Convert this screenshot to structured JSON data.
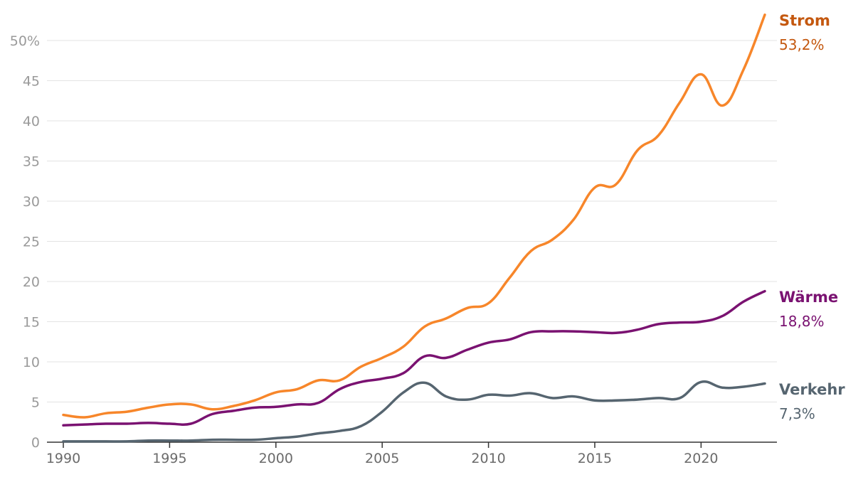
{
  "chart_data": {
    "type": "line",
    "title": "",
    "xlabel": "",
    "ylabel": "",
    "ylim": [
      0,
      55
    ],
    "y_ticks": [
      {
        "value": 0,
        "label": "0"
      },
      {
        "value": 5,
        "label": "5"
      },
      {
        "value": 10,
        "label": "10"
      },
      {
        "value": 15,
        "label": "15"
      },
      {
        "value": 20,
        "label": "20"
      },
      {
        "value": 25,
        "label": "25"
      },
      {
        "value": 30,
        "label": "30"
      },
      {
        "value": 35,
        "label": "35"
      },
      {
        "value": 40,
        "label": "40"
      },
      {
        "value": 45,
        "label": "45"
      },
      {
        "value": 50,
        "label": "50%"
      }
    ],
    "x_ticks": [
      1990,
      1995,
      2000,
      2005,
      2010,
      2015,
      2020
    ],
    "x": [
      1990,
      1991,
      1992,
      1993,
      1994,
      1995,
      1996,
      1997,
      1998,
      1999,
      2000,
      2001,
      2002,
      2003,
      2004,
      2005,
      2006,
      2007,
      2008,
      2009,
      2010,
      2011,
      2012,
      2013,
      2014,
      2015,
      2016,
      2017,
      2018,
      2019,
      2020,
      2021,
      2022,
      2023
    ],
    "series": [
      {
        "name": "Strom",
        "end_label": "53,2%",
        "color": "#f7862a",
        "label_color": "#c4580f",
        "values": [
          3.4,
          3.1,
          3.6,
          3.8,
          4.3,
          4.7,
          4.7,
          4.1,
          4.5,
          5.2,
          6.2,
          6.6,
          7.7,
          7.7,
          9.4,
          10.5,
          11.9,
          14.4,
          15.4,
          16.7,
          17.3,
          20.5,
          23.8,
          25.2,
          27.7,
          31.7,
          32.1,
          36.3,
          38.2,
          42.3,
          45.8,
          41.9,
          46.4,
          53.2
        ]
      },
      {
        "name": "Wärme",
        "end_label": "18,8%",
        "color": "#7a1271",
        "label_color": "#7a1271",
        "values": [
          2.1,
          2.2,
          2.3,
          2.3,
          2.4,
          2.3,
          2.3,
          3.5,
          3.9,
          4.3,
          4.4,
          4.7,
          4.9,
          6.6,
          7.5,
          7.9,
          8.6,
          10.7,
          10.5,
          11.5,
          12.4,
          12.8,
          13.7,
          13.8,
          13.8,
          13.7,
          13.6,
          14.0,
          14.7,
          14.9,
          15.0,
          15.7,
          17.5,
          18.8
        ]
      },
      {
        "name": "Verkehr",
        "end_label": "7,3%",
        "color": "#566570",
        "label_color": "#566570",
        "values": [
          0.1,
          0.1,
          0.1,
          0.1,
          0.2,
          0.2,
          0.2,
          0.3,
          0.3,
          0.3,
          0.5,
          0.7,
          1.1,
          1.4,
          2.0,
          3.8,
          6.2,
          7.4,
          5.7,
          5.3,
          5.9,
          5.8,
          6.1,
          5.5,
          5.7,
          5.2,
          5.2,
          5.3,
          5.5,
          5.5,
          7.5,
          6.8,
          6.9,
          7.3
        ]
      }
    ]
  }
}
